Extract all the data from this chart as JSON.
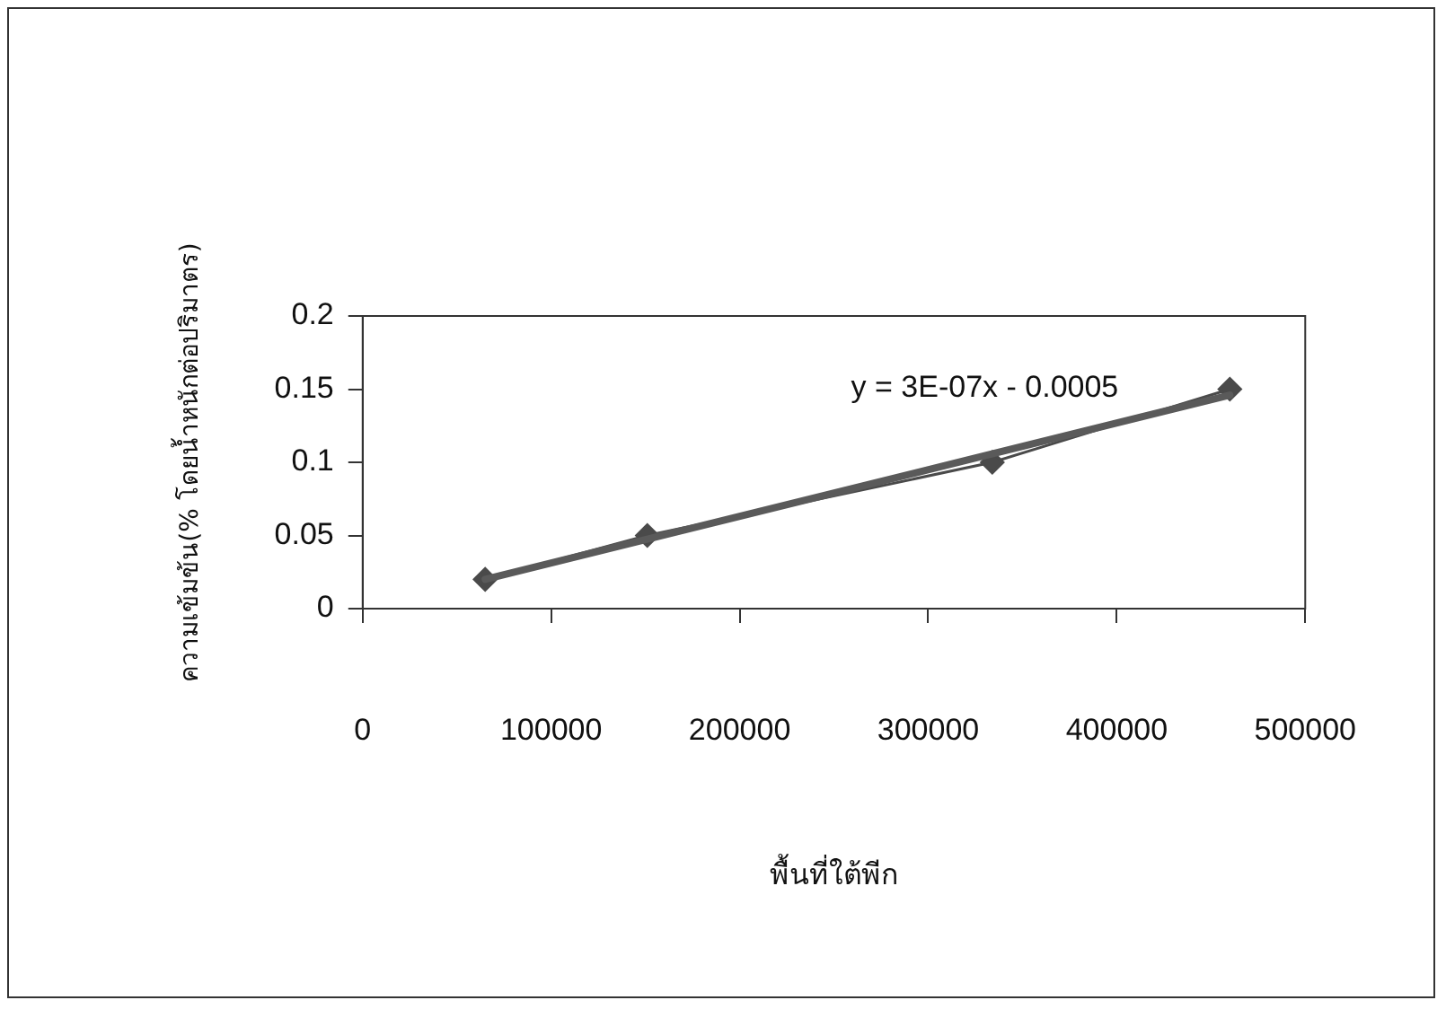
{
  "chart_data": {
    "type": "line",
    "xlabel": "พื้นที่ใต้พีก",
    "ylabel": "ความเข้มข้น(% โดยน้ำหนักต่อปริมาตร)",
    "xlim": [
      0,
      500000
    ],
    "xticks": [
      0,
      100000,
      200000,
      300000,
      400000,
      500000
    ],
    "ylim": [
      0,
      0.2
    ],
    "yticks": [
      0,
      0.05,
      0.1,
      0.15,
      0.2
    ],
    "grid": false,
    "legend": false,
    "series": [
      {
        "color": "#4a4a4a",
        "x": [
          65000,
          151000,
          334000,
          460000
        ],
        "values": [
          0.02,
          0.05,
          0.1,
          0.15
        ],
        "marker": "diamond",
        "line_style": "solid"
      },
      {
        "type": "line",
        "color": "#5a5a5a",
        "x": [
          65000,
          460000
        ],
        "values": [
          0.02,
          0.146
        ],
        "marker": "none",
        "line_style": "solid"
      }
    ],
    "annotations": [
      "y = 3E-07x - 0.0005"
    ]
  }
}
